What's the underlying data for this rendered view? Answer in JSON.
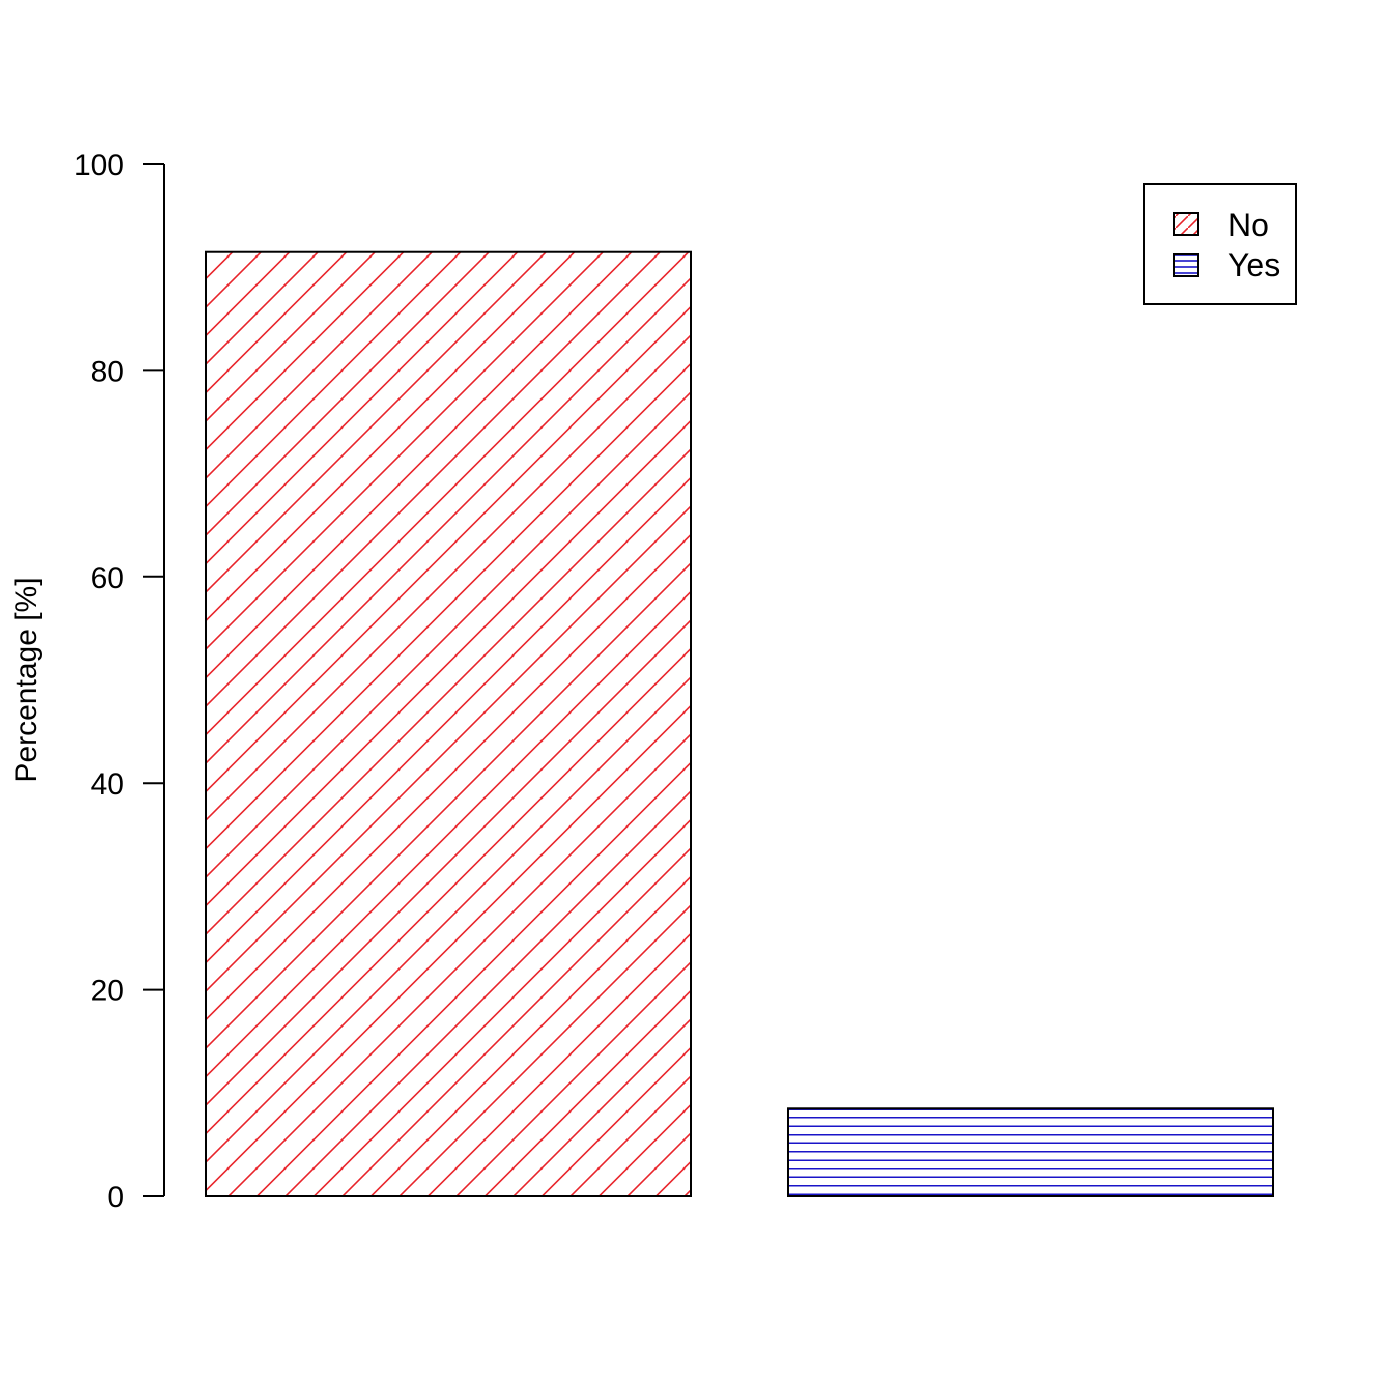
{
  "chart_data": {
    "type": "bar",
    "categories": [
      "No",
      "Yes"
    ],
    "values": [
      91.5,
      8.5
    ],
    "title": "",
    "xlabel": "",
    "ylabel": "Percentage [%]",
    "ylim": [
      0,
      100
    ],
    "yticks": [
      0,
      20,
      40,
      60,
      80,
      100
    ],
    "grid": false,
    "legend_position": "top-right",
    "colors": [
      "#e8242b",
      "#1a14c8"
    ],
    "patterns": [
      "diagonal",
      "horizontal"
    ]
  }
}
